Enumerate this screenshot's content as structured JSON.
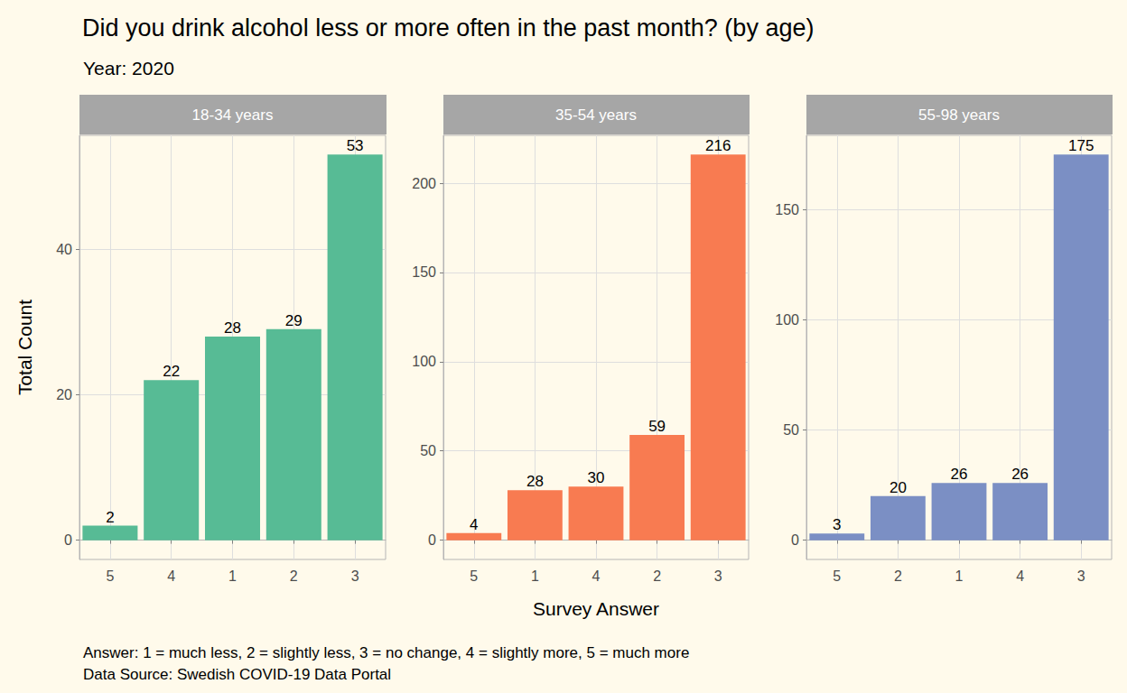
{
  "title": "Did you drink alcohol less or more often in the past month? (by age)",
  "subtitle": "Year: 2020",
  "x_label": "Survey Answer",
  "y_label": "Total Count",
  "annotations": [
    "Answer: 1 = much less, 2 = slightly less, 3 = no change, 4 = slightly more, 5 = much more",
    "Data Source: Swedish COVID-19 Data Portal"
  ],
  "chart_data": [
    {
      "type": "bar",
      "title": "18-34 years",
      "categories": [
        "5",
        "4",
        "1",
        "2",
        "3"
      ],
      "values": [
        2,
        22,
        28,
        29,
        53
      ],
      "color": "#57bb95",
      "ylim": [
        -2.65,
        55.65
      ],
      "yticks": [
        0,
        20,
        40
      ],
      "grid": true,
      "data_labels": true
    },
    {
      "type": "bar",
      "title": "35-54 years",
      "categories": [
        "5",
        "1",
        "4",
        "2",
        "3"
      ],
      "values": [
        4,
        28,
        30,
        59,
        216
      ],
      "color": "#f87b51",
      "ylim": [
        -10.8,
        226.8
      ],
      "yticks": [
        0,
        50,
        100,
        150,
        200
      ],
      "grid": true,
      "data_labels": true
    },
    {
      "type": "bar",
      "title": "55-98 years",
      "categories": [
        "5",
        "2",
        "1",
        "4",
        "3"
      ],
      "values": [
        3,
        20,
        26,
        26,
        175
      ],
      "color": "#7b8fc4",
      "ylim": [
        -8.75,
        183.75
      ],
      "yticks": [
        0,
        50,
        100,
        150
      ],
      "grid": true,
      "data_labels": true
    }
  ]
}
